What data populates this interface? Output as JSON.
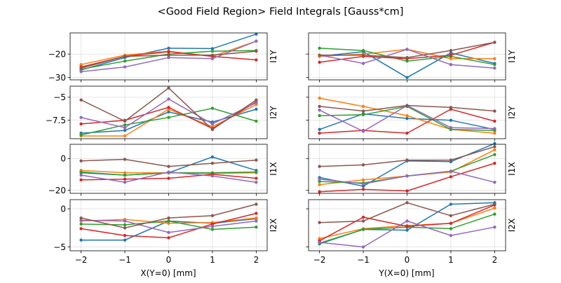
{
  "chart_data": {
    "type": "line",
    "title": "<Good Field Region> Field Integrals [Gauss*cm]",
    "x": [
      -2,
      -1,
      0,
      1,
      2
    ],
    "xticks": [
      -2,
      -1,
      0,
      1,
      2
    ],
    "left_xlabel": "X(Y=0) [mm]",
    "right_xlabel": "Y(X=0) [mm]",
    "xlim": [
      -2.25,
      2.25
    ],
    "grid": true,
    "colors": [
      "#1f77b4",
      "#ff7f0e",
      "#2ca02c",
      "#d62728",
      "#9467bd",
      "#8c564b"
    ],
    "rows": [
      {
        "label": "I1Y",
        "ylim": [
          -31,
          -11
        ],
        "yticks": [
          -30,
          -20
        ],
        "left": [
          [
            -26.8,
            -21.5,
            -17.5,
            -17.7,
            -11.5
          ],
          [
            -24.5,
            -20.5,
            -18.8,
            -21.0,
            -14.5
          ],
          [
            -26.5,
            -23.0,
            -20.0,
            -18.8,
            -18.5
          ],
          [
            -25.5,
            -21.0,
            -19.0,
            -21.0,
            -22.5
          ],
          [
            -27.5,
            -25.5,
            -21.5,
            -22.0,
            -14.5
          ],
          [
            -26.0,
            -21.0,
            -20.5,
            -20.5,
            -18.8
          ]
        ],
        "right": [
          [
            -21.0,
            -19.0,
            -30.0,
            -19.5,
            -24.0
          ],
          [
            -21.0,
            -20.0,
            -18.0,
            -22.0,
            -22.0
          ],
          [
            -17.5,
            -18.5,
            -23.0,
            -21.0,
            -24.5
          ],
          [
            -23.5,
            -21.0,
            -22.0,
            -20.5,
            -15.0
          ],
          [
            -20.5,
            -24.0,
            -18.0,
            -24.5,
            -26.0
          ],
          [
            -20.5,
            -20.5,
            -21.5,
            -18.5,
            -15.0
          ]
        ]
      },
      {
        "label": "I2Y",
        "ylim": [
          -9.5,
          -3.8
        ],
        "yticks": [
          -7.5,
          -5.0
        ],
        "left": [
          [
            -8.9,
            -8.6,
            -6.6,
            -7.7,
            -6.3
          ],
          [
            -9.2,
            -9.2,
            -6.3,
            -8.2,
            -5.8
          ],
          [
            -9.1,
            -8.0,
            -7.2,
            -6.2,
            -7.6
          ],
          [
            -7.9,
            -7.5,
            -6.1,
            -8.4,
            -5.5
          ],
          [
            -7.2,
            -8.3,
            -5.2,
            -7.9,
            -5.6
          ],
          [
            -5.3,
            -7.6,
            -4.0,
            -8.5,
            -5.3
          ]
        ],
        "right": [
          [
            -8.5,
            -6.8,
            -7.3,
            -7.5,
            -8.5
          ],
          [
            -5.1,
            -6.0,
            -7.0,
            -8.5,
            -8.9
          ],
          [
            -7.0,
            -6.9,
            -6.0,
            -8.5,
            -8.6
          ],
          [
            -8.9,
            -8.6,
            -8.9,
            -6.3,
            -7.6
          ],
          [
            -6.4,
            -8.7,
            -5.9,
            -8.3,
            -8.4
          ],
          [
            -6.0,
            -6.5,
            -5.9,
            -6.1,
            -6.5
          ]
        ]
      },
      {
        "label": "I1X",
        "ylim": [
          -22,
          9
        ],
        "yticks": [
          -20,
          0
        ],
        "left": [
          [
            -9.0,
            -10.5,
            -9.0,
            1.0,
            -7.5
          ],
          [
            -7.5,
            -9.0,
            -9.0,
            -9.5,
            -9.0
          ],
          [
            -8.5,
            -10.5,
            -9.0,
            -9.0,
            -8.5
          ],
          [
            -13.5,
            -13.0,
            -12.5,
            -10.0,
            -12.5
          ],
          [
            -10.5,
            -15.0,
            -8.5,
            -11.0,
            -15.0
          ],
          [
            -1.5,
            -0.5,
            -5.0,
            -3.0,
            -1.0
          ]
        ],
        "right": [
          [
            -12.0,
            -17.5,
            -1.5,
            -2.0,
            9.5
          ],
          [
            -16.5,
            -13.5,
            -11.0,
            -8.5,
            5.5
          ],
          [
            -14.5,
            -15.5,
            -11.0,
            -8.0,
            2.5
          ],
          [
            -21.0,
            -19.5,
            -20.5,
            -11.5,
            -3.0
          ],
          [
            -13.0,
            -16.0,
            -11.0,
            -8.0,
            -15.0
          ],
          [
            -5.0,
            -4.0,
            -1.0,
            -1.0,
            7.5
          ]
        ]
      },
      {
        "label": "I2X",
        "ylim": [
          -5.5,
          1.2
        ],
        "yticks": [
          -5,
          0
        ],
        "left": [
          [
            -4.1,
            -4.1,
            -1.6,
            -1.9,
            -1.3
          ],
          [
            -1.6,
            -1.4,
            -1.9,
            -1.8,
            -1.2
          ],
          [
            -2.0,
            -2.1,
            -1.6,
            -2.7,
            -2.4
          ],
          [
            -2.6,
            -3.5,
            -3.8,
            -2.0,
            -0.6
          ],
          [
            -1.5,
            -1.6,
            -3.1,
            -2.3,
            -1.6
          ],
          [
            -1.2,
            -2.5,
            -1.2,
            -0.9,
            0.6
          ]
        ],
        "right": [
          [
            -4.6,
            -2.7,
            -2.8,
            0.6,
            0.8
          ],
          [
            -3.9,
            -2.6,
            -2.2,
            -1.9,
            0.1
          ],
          [
            -4.5,
            -2.7,
            -2.4,
            -2.6,
            -0.7
          ],
          [
            -4.2,
            -1.1,
            -2.3,
            -1.9,
            0.5
          ],
          [
            -4.4,
            -5.0,
            -1.6,
            -3.5,
            -2.4
          ],
          [
            -1.8,
            -1.6,
            0.8,
            -0.9,
            0.6
          ]
        ]
      }
    ]
  }
}
